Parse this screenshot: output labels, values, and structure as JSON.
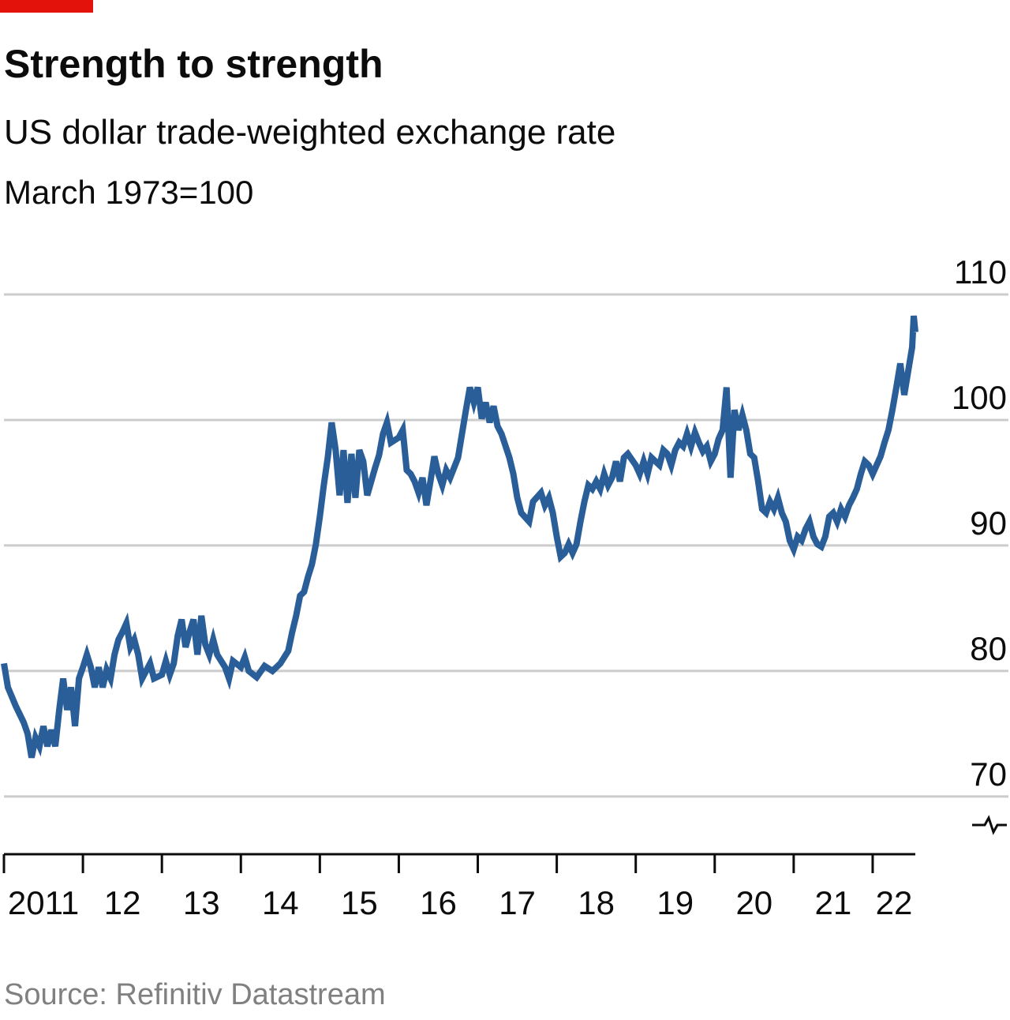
{
  "chart_data": {
    "type": "line",
    "title": "Strength to strength",
    "subtitle": "US dollar trade-weighted exchange rate",
    "unit_note": "March 1973=100",
    "source": "Source: Refinitiv Datastream",
    "color": "#2a5e99",
    "grid": true,
    "xlim": [
      2011,
      2022.54
    ],
    "ylim": [
      65.4,
      110
    ],
    "yticks": [
      70,
      80,
      90,
      100,
      110
    ],
    "xticks": [
      {
        "value": 2011,
        "label": "2011"
      },
      {
        "value": 2012,
        "label": "12"
      },
      {
        "value": 2013,
        "label": "13"
      },
      {
        "value": 2014,
        "label": "14"
      },
      {
        "value": 2015,
        "label": "15"
      },
      {
        "value": 2016,
        "label": "16"
      },
      {
        "value": 2017,
        "label": "17"
      },
      {
        "value": 2018,
        "label": "18"
      },
      {
        "value": 2019,
        "label": "19"
      },
      {
        "value": 2020,
        "label": "20"
      },
      {
        "value": 2021,
        "label": "21"
      },
      {
        "value": 2022,
        "label": "22"
      }
    ],
    "x": [
      2011.0,
      2011.05,
      2011.15,
      2011.25,
      2011.3,
      2011.35,
      2011.4,
      2011.45,
      2011.5,
      2011.55,
      2011.6,
      2011.65,
      2011.7,
      2011.75,
      2011.8,
      2011.85,
      2011.9,
      2011.95,
      2012.0,
      2012.05,
      2012.1,
      2012.15,
      2012.2,
      2012.25,
      2012.3,
      2012.35,
      2012.4,
      2012.45,
      2012.5,
      2012.55,
      2012.6,
      2012.65,
      2012.7,
      2012.75,
      2012.85,
      2012.9,
      2013.0,
      2013.05,
      2013.1,
      2013.15,
      2013.2,
      2013.25,
      2013.3,
      2013.35,
      2013.4,
      2013.45,
      2013.5,
      2013.55,
      2013.6,
      2013.65,
      2013.7,
      2013.8,
      2013.85,
      2013.9,
      2014.0,
      2014.05,
      2014.1,
      2014.2,
      2014.3,
      2014.4,
      2014.5,
      2014.6,
      2014.65,
      2014.7,
      2014.75,
      2014.8,
      2014.85,
      2014.9,
      2014.95,
      2015.0,
      2015.05,
      2015.1,
      2015.15,
      2015.2,
      2015.25,
      2015.3,
      2015.35,
      2015.4,
      2015.45,
      2015.5,
      2015.55,
      2015.6,
      2015.7,
      2015.75,
      2015.8,
      2015.85,
      2015.9,
      2016.0,
      2016.05,
      2016.1,
      2016.15,
      2016.2,
      2016.25,
      2016.3,
      2016.35,
      2016.4,
      2016.45,
      2016.5,
      2016.55,
      2016.6,
      2016.65,
      2016.75,
      2016.8,
      2016.85,
      2016.9,
      2016.95,
      2017.0,
      2017.05,
      2017.1,
      2017.15,
      2017.2,
      2017.25,
      2017.3,
      2017.4,
      2017.45,
      2017.5,
      2017.55,
      2017.65,
      2017.7,
      2017.8,
      2017.85,
      2017.9,
      2017.95,
      2018.0,
      2018.05,
      2018.1,
      2018.15,
      2018.2,
      2018.25,
      2018.3,
      2018.35,
      2018.4,
      2018.45,
      2018.5,
      2018.55,
      2018.6,
      2018.65,
      2018.7,
      2018.75,
      2018.8,
      2018.85,
      2018.9,
      2019.0,
      2019.05,
      2019.1,
      2019.15,
      2019.2,
      2019.3,
      2019.35,
      2019.4,
      2019.45,
      2019.5,
      2019.55,
      2019.6,
      2019.65,
      2019.7,
      2019.75,
      2019.8,
      2019.85,
      2019.9,
      2019.95,
      2020.0,
      2020.05,
      2020.1,
      2020.15,
      2020.2,
      2020.25,
      2020.3,
      2020.35,
      2020.4,
      2020.45,
      2020.5,
      2020.55,
      2020.6,
      2020.65,
      2020.7,
      2020.75,
      2020.8,
      2020.85,
      2020.9,
      2020.95,
      2021.0,
      2021.05,
      2021.1,
      2021.15,
      2021.2,
      2021.25,
      2021.3,
      2021.35,
      2021.4,
      2021.45,
      2021.5,
      2021.55,
      2021.6,
      2021.65,
      2021.7,
      2021.75,
      2021.8,
      2021.85,
      2021.9,
      2021.95,
      2022.0,
      2022.05,
      2022.1,
      2022.15,
      2022.2,
      2022.25,
      2022.3,
      2022.35,
      2022.4,
      2022.45,
      2022.5,
      2022.52,
      2022.54
    ],
    "values": [
      80.6,
      78.7,
      77.2,
      75.9,
      75.0,
      73.1,
      74.7,
      74.0,
      75.6,
      74.0,
      75.3,
      74.0,
      76.9,
      79.4,
      76.9,
      78.7,
      75.6,
      79.4,
      80.3,
      81.3,
      80.3,
      78.7,
      80.3,
      78.7,
      80.1,
      79.4,
      81.3,
      82.5,
      83.1,
      83.8,
      81.9,
      82.5,
      81.3,
      79.4,
      80.6,
      79.4,
      79.7,
      80.8,
      79.7,
      80.6,
      82.8,
      84.1,
      81.9,
      83.1,
      84.1,
      81.3,
      84.4,
      82.1,
      81.3,
      82.5,
      81.3,
      80.3,
      79.4,
      80.8,
      80.3,
      81.1,
      80.0,
      79.5,
      80.4,
      80.0,
      80.6,
      81.6,
      83.1,
      84.4,
      86.0,
      86.3,
      87.5,
      88.5,
      90.1,
      92.3,
      94.8,
      97.0,
      99.8,
      97.6,
      94.0,
      97.6,
      93.4,
      97.3,
      93.8,
      97.6,
      96.7,
      94.0,
      96.2,
      97.2,
      98.9,
      99.8,
      98.2,
      98.6,
      99.2,
      96.0,
      95.7,
      95.1,
      94.2,
      95.4,
      93.2,
      95.1,
      97.1,
      95.7,
      94.8,
      96.0,
      95.4,
      97.0,
      98.9,
      100.8,
      102.6,
      101.4,
      102.6,
      100.1,
      101.4,
      99.8,
      101.1,
      99.5,
      98.9,
      97.0,
      95.7,
      93.8,
      92.6,
      91.9,
      93.5,
      94.2,
      93.2,
      93.8,
      92.6,
      90.7,
      89.1,
      89.4,
      90.1,
      89.4,
      90.1,
      91.9,
      93.5,
      94.8,
      94.5,
      95.1,
      94.5,
      95.7,
      94.8,
      95.4,
      96.7,
      95.1,
      97.0,
      97.3,
      96.4,
      95.7,
      96.7,
      95.7,
      97.0,
      96.4,
      97.6,
      97.3,
      96.4,
      97.6,
      98.2,
      97.9,
      98.9,
      97.9,
      99.0,
      98.2,
      97.5,
      97.9,
      96.7,
      97.3,
      98.5,
      99.2,
      102.6,
      95.4,
      100.8,
      99.2,
      100.4,
      99.2,
      97.3,
      97.0,
      95.1,
      92.9,
      92.6,
      93.5,
      92.9,
      93.8,
      92.6,
      91.9,
      90.4,
      89.7,
      90.7,
      90.4,
      91.3,
      91.9,
      90.7,
      90.1,
      89.9,
      90.7,
      92.3,
      92.6,
      91.9,
      92.9,
      92.3,
      93.2,
      93.8,
      94.5,
      95.7,
      96.7,
      96.4,
      95.7,
      96.4,
      97.1,
      98.2,
      99.2,
      100.8,
      102.6,
      104.5,
      102.0,
      103.9,
      105.8,
      108.3,
      107.0
    ]
  }
}
